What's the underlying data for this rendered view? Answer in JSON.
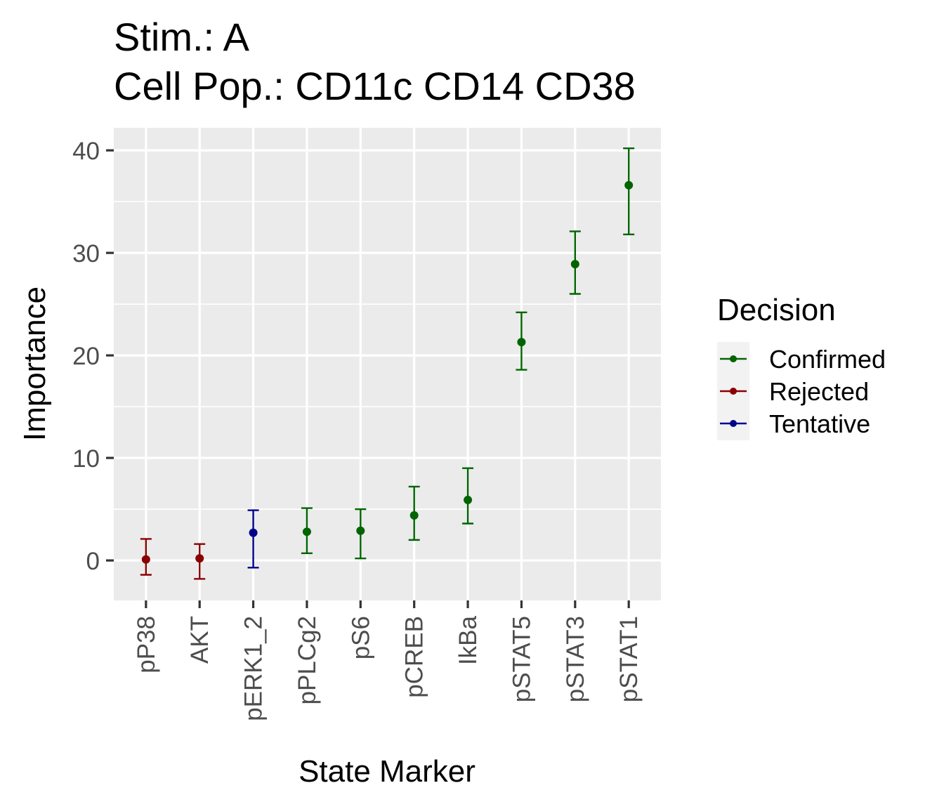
{
  "chart_data": {
    "type": "scatter",
    "title_lines": [
      "Stim.: A",
      "Cell Pop.: CD11c CD14 CD38"
    ],
    "xlabel": "State Marker",
    "ylabel": "Importance",
    "categories": [
      "pP38",
      "AKT",
      "pERK1_2",
      "pPLCg2",
      "pS6",
      "pCREB",
      "IkBa",
      "pSTAT5",
      "pSTAT3",
      "pSTAT1"
    ],
    "points": [
      {
        "category": "pP38",
        "value": 0.1,
        "low": -1.4,
        "high": 2.1,
        "decision": "Rejected"
      },
      {
        "category": "AKT",
        "value": 0.2,
        "low": -1.8,
        "high": 1.6,
        "decision": "Rejected"
      },
      {
        "category": "pERK1_2",
        "value": 2.7,
        "low": -0.7,
        "high": 4.9,
        "decision": "Tentative"
      },
      {
        "category": "pPLCg2",
        "value": 2.8,
        "low": 0.7,
        "high": 5.1,
        "decision": "Confirmed"
      },
      {
        "category": "pS6",
        "value": 2.9,
        "low": 0.2,
        "high": 5.0,
        "decision": "Confirmed"
      },
      {
        "category": "pCREB",
        "value": 4.4,
        "low": 2.0,
        "high": 7.2,
        "decision": "Confirmed"
      },
      {
        "category": "IkBa",
        "value": 5.9,
        "low": 3.6,
        "high": 9.0,
        "decision": "Confirmed"
      },
      {
        "category": "pSTAT5",
        "value": 21.3,
        "low": 18.6,
        "high": 24.2,
        "decision": "Confirmed"
      },
      {
        "category": "pSTAT3",
        "value": 28.9,
        "low": 26.0,
        "high": 32.1,
        "decision": "Confirmed"
      },
      {
        "category": "pSTAT1",
        "value": 36.6,
        "low": 31.8,
        "high": 40.2,
        "decision": "Confirmed"
      }
    ],
    "ylim": [
      -3.9,
      42.2
    ],
    "yticks": [
      0,
      10,
      20,
      30,
      40
    ],
    "ytick_labels": [
      "0",
      "10",
      "20",
      "30",
      "40"
    ],
    "grid": true,
    "legend": {
      "title": "Decision",
      "position": "right",
      "entries": [
        {
          "label": "Confirmed",
          "color": "#006400"
        },
        {
          "label": "Rejected",
          "color": "#8B0000"
        },
        {
          "label": "Tentative",
          "color": "#00008B"
        }
      ]
    },
    "colors": {
      "Confirmed": "#006400",
      "Rejected": "#8B0000",
      "Tentative": "#00008B"
    }
  }
}
